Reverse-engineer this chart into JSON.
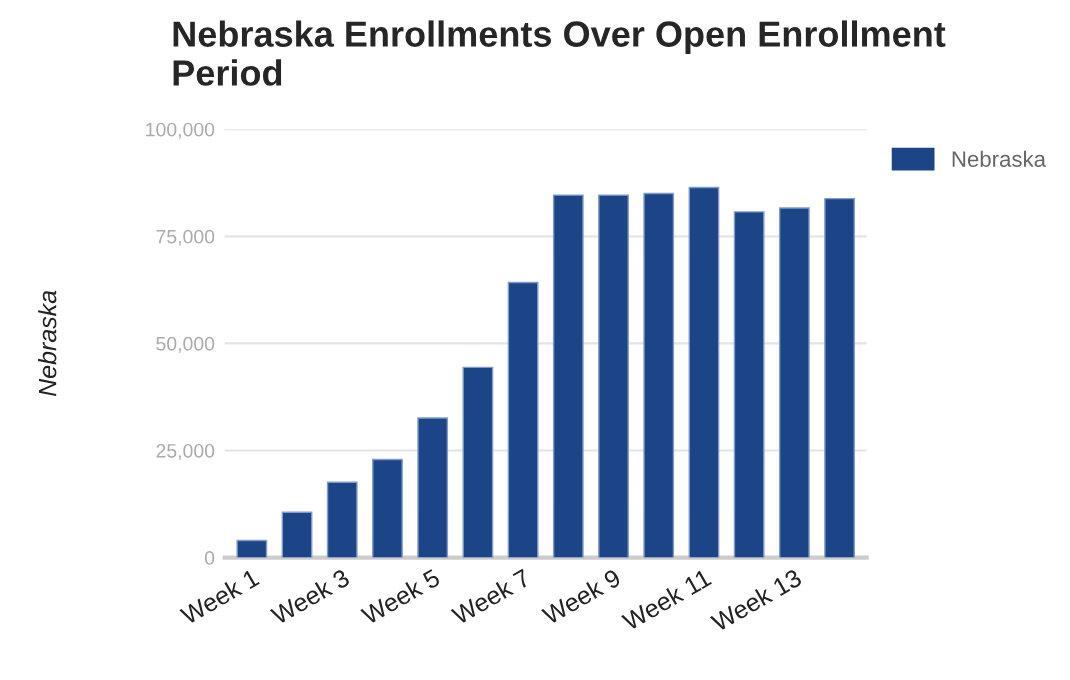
{
  "chart_data": {
    "type": "bar",
    "title": "Nebraska Enrollments Over Open Enrollment Period",
    "ylabel": "Nebraska",
    "categories": [
      "Week 1",
      null,
      "Week 3",
      null,
      "Week 5",
      null,
      "Week 7",
      null,
      "Week 9",
      null,
      "Week 11",
      null,
      "Week 13",
      null
    ],
    "series": [
      {
        "name": "Nebraska",
        "color": "#1c4587",
        "values": [
          4000,
          10600,
          17600,
          22900,
          32600,
          44400,
          64200,
          84600,
          84600,
          85000,
          86400,
          80700,
          81600,
          83800
        ]
      }
    ],
    "ylim": [
      0,
      100000
    ],
    "yticks": [
      {
        "value": 0,
        "label": "0"
      },
      {
        "value": 25000,
        "label": "25,000"
      },
      {
        "value": 50000,
        "label": "50,000"
      },
      {
        "value": 75000,
        "label": "75,000"
      },
      {
        "value": 100000,
        "label": "100,000"
      }
    ],
    "grid": "y",
    "legend": "top right"
  }
}
